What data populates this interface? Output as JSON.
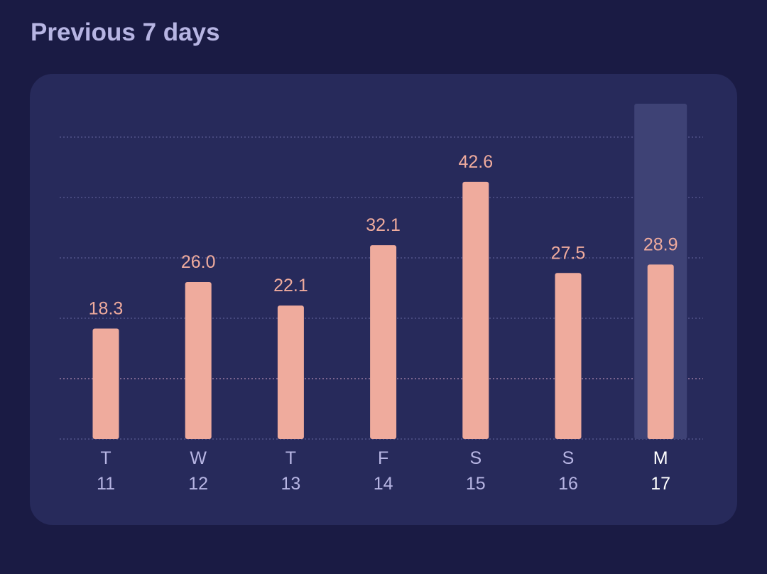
{
  "header": {
    "title": "Previous 7 days"
  },
  "colors": {
    "background": "#1a1b44",
    "card": "#272a5b",
    "bar": "#efab9d",
    "value_label": "#efab9d",
    "axis_label": "#b7b5e3",
    "selected_label": "#ffffff",
    "selected_highlight": "#3e4275",
    "gridline": "#47497e",
    "reference_line": "#7c6690"
  },
  "chart_data": {
    "type": "bar",
    "title": "",
    "xlabel": "",
    "ylabel": "",
    "ylim": [
      0,
      50
    ],
    "grid": true,
    "gridlines": [
      10,
      20,
      30,
      40,
      50
    ],
    "reference_line": 10,
    "selected_index": 6,
    "categories": [
      {
        "day": "T",
        "date": "11"
      },
      {
        "day": "W",
        "date": "12"
      },
      {
        "day": "T",
        "date": "13"
      },
      {
        "day": "F",
        "date": "14"
      },
      {
        "day": "S",
        "date": "15"
      },
      {
        "day": "S",
        "date": "16"
      },
      {
        "day": "M",
        "date": "17"
      }
    ],
    "values": [
      18.3,
      26.0,
      22.1,
      32.1,
      42.6,
      27.5,
      28.9
    ],
    "value_labels": [
      "18.3",
      "26.0",
      "22.1",
      "32.1",
      "42.6",
      "27.5",
      "28.9"
    ]
  }
}
